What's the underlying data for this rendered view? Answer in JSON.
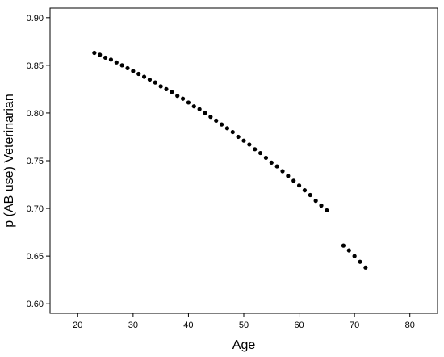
{
  "chart_data": {
    "type": "scatter",
    "title": "",
    "xlabel": "Age",
    "ylabel": "p (AB use) Veterinarian",
    "xlim": [
      15,
      85
    ],
    "ylim": [
      0.59,
      0.91
    ],
    "x_ticks": [
      20,
      30,
      40,
      50,
      60,
      70,
      80
    ],
    "y_ticks": [
      0.6,
      0.65,
      0.7,
      0.75,
      0.8,
      0.85,
      0.9
    ],
    "x_tick_labels": [
      "20",
      "30",
      "40",
      "50",
      "60",
      "70",
      "80"
    ],
    "y_tick_labels": [
      "0.60",
      "0.65",
      "0.70",
      "0.75",
      "0.80",
      "0.85",
      "0.90"
    ],
    "grid": false,
    "colors": {
      "point": "#000000",
      "axis": "#000000",
      "background": "#ffffff"
    },
    "series": [
      {
        "points": [
          [
            23,
            0.863
          ],
          [
            24,
            0.861
          ],
          [
            25,
            0.858
          ],
          [
            26,
            0.856
          ],
          [
            27,
            0.853
          ],
          [
            28,
            0.85
          ],
          [
            29,
            0.847
          ],
          [
            30,
            0.844
          ],
          [
            31,
            0.841
          ],
          [
            32,
            0.838
          ],
          [
            33,
            0.835
          ],
          [
            34,
            0.832
          ],
          [
            35,
            0.828
          ],
          [
            36,
            0.825
          ],
          [
            37,
            0.822
          ],
          [
            38,
            0.818
          ],
          [
            39,
            0.815
          ],
          [
            40,
            0.811
          ],
          [
            41,
            0.807
          ],
          [
            42,
            0.804
          ],
          [
            43,
            0.8
          ],
          [
            44,
            0.796
          ],
          [
            45,
            0.792
          ],
          [
            46,
            0.788
          ],
          [
            47,
            0.784
          ],
          [
            48,
            0.78
          ],
          [
            49,
            0.775
          ],
          [
            50,
            0.771
          ],
          [
            51,
            0.767
          ],
          [
            52,
            0.762
          ],
          [
            53,
            0.758
          ],
          [
            54,
            0.753
          ],
          [
            55,
            0.748
          ],
          [
            56,
            0.744
          ],
          [
            57,
            0.739
          ],
          [
            58,
            0.734
          ],
          [
            59,
            0.729
          ],
          [
            60,
            0.724
          ],
          [
            61,
            0.719
          ],
          [
            62,
            0.714
          ],
          [
            63,
            0.708
          ],
          [
            64,
            0.703
          ],
          [
            65,
            0.698
          ],
          [
            68,
            0.661
          ],
          [
            69,
            0.656
          ],
          [
            70,
            0.65
          ],
          [
            71,
            0.644
          ],
          [
            72,
            0.638
          ]
        ]
      }
    ]
  }
}
